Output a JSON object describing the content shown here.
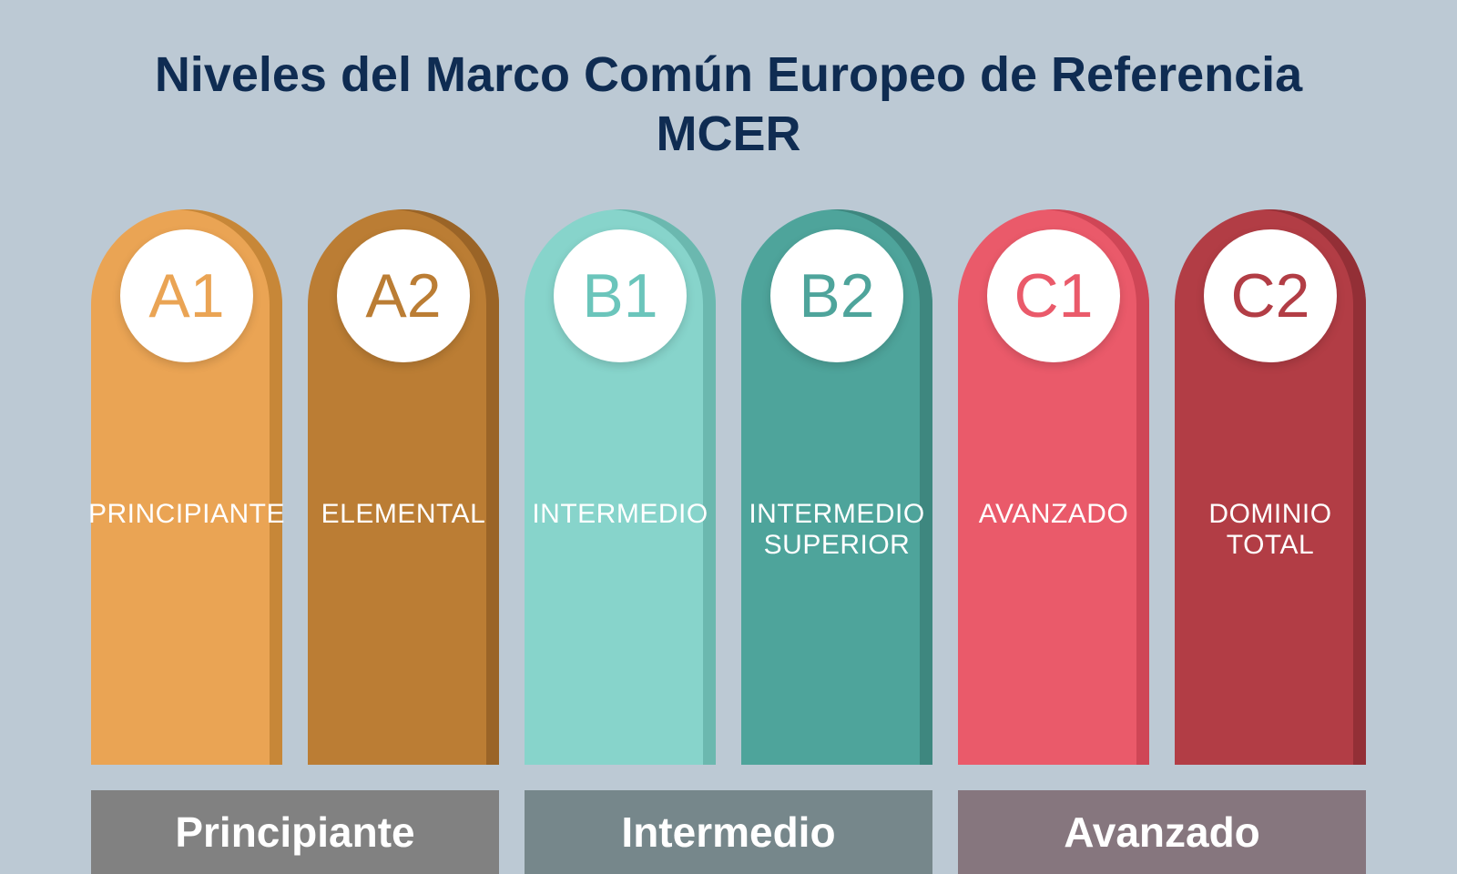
{
  "type": "infographic",
  "background_color": "#bcc9d4",
  "title": {
    "text": "Niveles del Marco Común Europeo de Referencia MCER",
    "color": "#0f2c52",
    "fontsize": 54
  },
  "layout": {
    "pillar_width": 210,
    "pillar_height": 610,
    "pillar_gap": 28,
    "circle_diameter": 146,
    "group_height": 92
  },
  "pillars": [
    {
      "code": "A1",
      "label": "PRINCIPIANTE",
      "bg": "#eaa454",
      "text_color": "#eaa454",
      "shadow": "#c78738"
    },
    {
      "code": "A2",
      "label": "ELEMENTAL",
      "bg": "#bb7d34",
      "text_color": "#bb7d34",
      "shadow": "#9a6427"
    },
    {
      "code": "B1",
      "label": "INTERMEDIO",
      "bg": "#87d4cb",
      "text_color": "#6bc5bb",
      "shadow": "#6bb8af"
    },
    {
      "code": "B2",
      "label": "INTERMEDIO SUPERIOR",
      "bg": "#4ea49b",
      "text_color": "#4ea49b",
      "shadow": "#3e877f"
    },
    {
      "code": "C1",
      "label": "AVANZADO",
      "bg": "#ea5a6a",
      "text_color": "#ea5a6a",
      "shadow": "#cf4656"
    },
    {
      "code": "C2",
      "label": "DOMINIO TOTAL",
      "bg": "#b23d45",
      "text_color": "#b23d45",
      "shadow": "#932f36"
    }
  ],
  "groups": [
    {
      "label": "Principiante",
      "span": 2,
      "bg": "rgba(80,70,60,0.55)"
    },
    {
      "label": "Intermedio",
      "span": 2,
      "bg": "rgba(60,80,78,0.55)"
    },
    {
      "label": "Avanzado",
      "span": 2,
      "bg": "rgba(90,50,55,0.55)"
    }
  ]
}
